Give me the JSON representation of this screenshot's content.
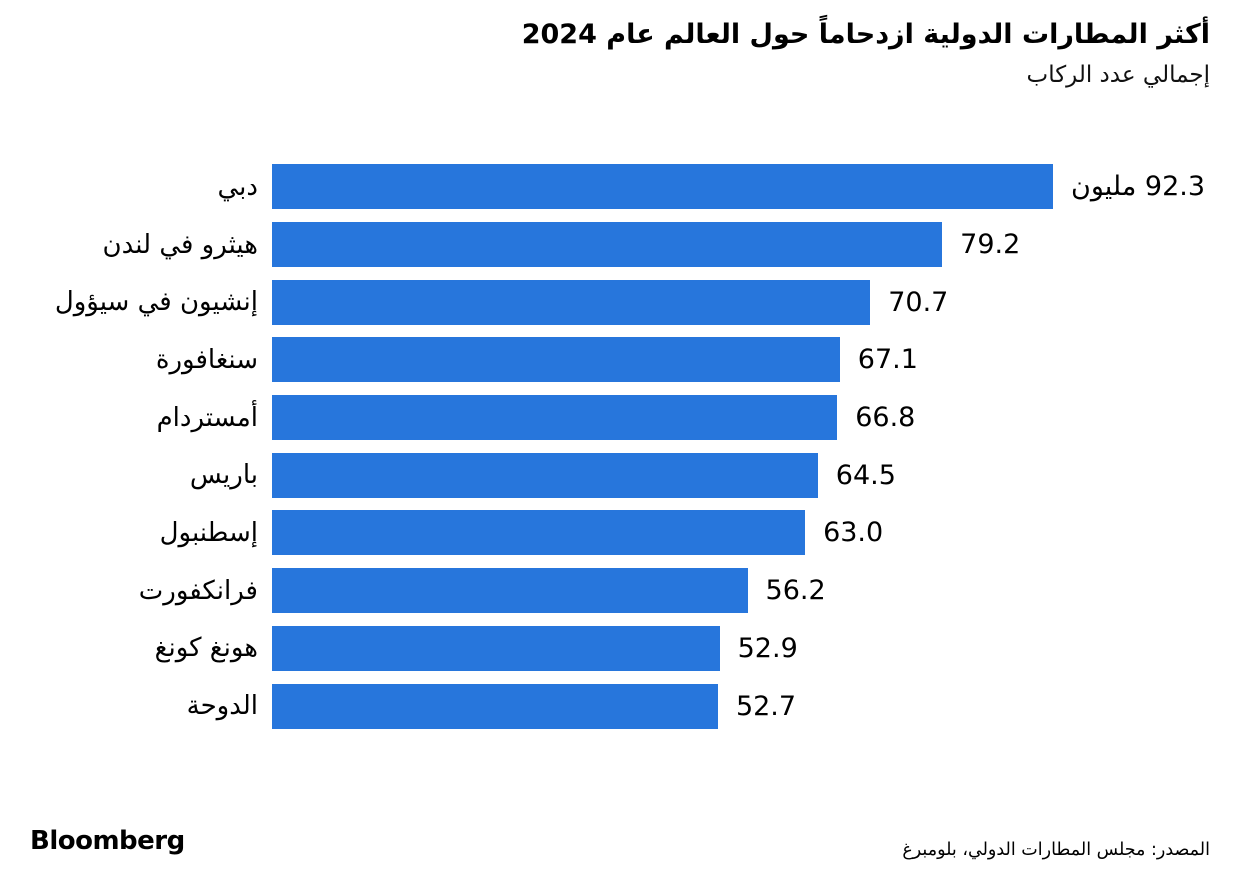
{
  "header": {
    "title": "أكثر المطارات الدولية ازدحاماً حول العالم عام 2024",
    "subtitle": "إجمالي عدد الركاب"
  },
  "chart_data": {
    "type": "bar",
    "orientation": "horizontal",
    "title": "أكثر المطارات الدولية ازدحاماً حول العالم عام 2024",
    "subtitle": "إجمالي عدد الركاب",
    "unit_word": "مليون",
    "categories": [
      "دبي",
      "هيثرو في لندن",
      "إنشيون في سيؤول",
      "سنغافورة",
      "أمستردام",
      "باريس",
      "إسطنبول",
      "فرانكفورت",
      "هونغ كونغ",
      "الدوحة"
    ],
    "values": [
      92.3,
      79.2,
      70.7,
      67.1,
      66.8,
      64.5,
      63.0,
      56.2,
      52.9,
      52.7
    ],
    "value_labels": [
      "92.3 مليون",
      "79.2",
      "70.7",
      "67.1",
      "66.8",
      "64.5",
      "63.0",
      "56.2",
      "52.9",
      "52.7"
    ],
    "xlim": [
      0,
      92.3
    ],
    "grid": false,
    "legend": "none",
    "bar_color": "#2776DC"
  },
  "footer": {
    "brand": "Bloomberg",
    "source": "المصدر: مجلس المطارات الدولي، بلومبرغ"
  },
  "colors": {
    "bar": "#2776DC",
    "text": "#000000",
    "background": "#FFFFFF"
  }
}
